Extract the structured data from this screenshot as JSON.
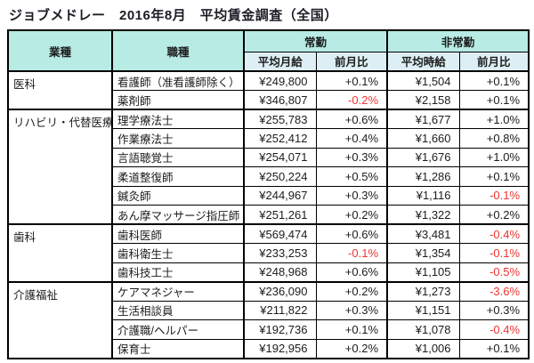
{
  "title": "ジョブメドレー　2016年8月　平均賃金調査（全国）",
  "colors": {
    "header_teal": "#b7ebe3",
    "subheader_blue": "#ddeff5",
    "negative_red": "#ee3333",
    "border_black": "#000000"
  },
  "table": {
    "headers": {
      "industry": "業種",
      "occupation": "職種",
      "fulltime": "常勤",
      "parttime": "非常勤",
      "avg_monthly": "平均月給",
      "mom_monthly": "前月比",
      "avg_hourly": "平均時給",
      "mom_hourly": "前月比"
    },
    "groups": [
      {
        "industry": "医科",
        "rows": [
          {
            "occupation": "看護師（准看護師除く）",
            "monthly": "¥249,800",
            "monthly_mom": "+0.1%",
            "monthly_neg": false,
            "hourly": "¥1,504",
            "hourly_mom": "+0.1%",
            "hourly_neg": false
          },
          {
            "occupation": "薬剤師",
            "monthly": "¥346,807",
            "monthly_mom": "-0.2%",
            "monthly_neg": true,
            "hourly": "¥2,158",
            "hourly_mom": "+0.1%",
            "hourly_neg": false
          }
        ]
      },
      {
        "industry": "リハビリ・代替医療",
        "rows": [
          {
            "occupation": "理学療法士",
            "monthly": "¥255,783",
            "monthly_mom": "+0.6%",
            "monthly_neg": false,
            "hourly": "¥1,677",
            "hourly_mom": "+1.0%",
            "hourly_neg": false
          },
          {
            "occupation": "作業療法士",
            "monthly": "¥252,412",
            "monthly_mom": "+0.4%",
            "monthly_neg": false,
            "hourly": "¥1,660",
            "hourly_mom": "+0.8%",
            "hourly_neg": false
          },
          {
            "occupation": "言語聴覚士",
            "monthly": "¥254,071",
            "monthly_mom": "+0.3%",
            "monthly_neg": false,
            "hourly": "¥1,676",
            "hourly_mom": "+1.0%",
            "hourly_neg": false
          },
          {
            "occupation": "柔道整復師",
            "monthly": "¥250,224",
            "monthly_mom": "+0.5%",
            "monthly_neg": false,
            "hourly": "¥1,286",
            "hourly_mom": "+0.1%",
            "hourly_neg": false
          },
          {
            "occupation": "鍼灸師",
            "monthly": "¥244,967",
            "monthly_mom": "+0.3%",
            "monthly_neg": false,
            "hourly": "¥1,116",
            "hourly_mom": "-0.1%",
            "hourly_neg": true
          },
          {
            "occupation": "あん摩マッサージ指圧師",
            "monthly": "¥251,261",
            "monthly_mom": "+0.2%",
            "monthly_neg": false,
            "hourly": "¥1,322",
            "hourly_mom": "+0.2%",
            "hourly_neg": false
          }
        ]
      },
      {
        "industry": "歯科",
        "rows": [
          {
            "occupation": "歯科医師",
            "monthly": "¥569,474",
            "monthly_mom": "+0.6%",
            "monthly_neg": false,
            "hourly": "¥3,481",
            "hourly_mom": "-0.4%",
            "hourly_neg": true
          },
          {
            "occupation": "歯科衛生士",
            "monthly": "¥233,253",
            "monthly_mom": "-0.1%",
            "monthly_neg": true,
            "hourly": "¥1,354",
            "hourly_mom": "-0.1%",
            "hourly_neg": true
          },
          {
            "occupation": "歯科技工士",
            "monthly": "¥248,968",
            "monthly_mom": "+0.6%",
            "monthly_neg": false,
            "hourly": "¥1,105",
            "hourly_mom": "-0.5%",
            "hourly_neg": true
          }
        ]
      },
      {
        "industry": "介護福祉",
        "rows": [
          {
            "occupation": "ケアマネジャー",
            "monthly": "¥236,090",
            "monthly_mom": "+0.2%",
            "monthly_neg": false,
            "hourly": "¥1,273",
            "hourly_mom": "-3.6%",
            "hourly_neg": true
          },
          {
            "occupation": "生活相談員",
            "monthly": "¥211,822",
            "monthly_mom": "+0.3%",
            "monthly_neg": false,
            "hourly": "¥1,151",
            "hourly_mom": "+0.3%",
            "hourly_neg": false
          },
          {
            "occupation": "介護職/ヘルパー",
            "monthly": "¥192,736",
            "monthly_mom": "+0.1%",
            "monthly_neg": false,
            "hourly": "¥1,078",
            "hourly_mom": "-0.4%",
            "hourly_neg": true
          },
          {
            "occupation": "保育士",
            "monthly": "¥192,956",
            "monthly_mom": "+0.2%",
            "monthly_neg": false,
            "hourly": "¥1,006",
            "hourly_mom": "+0.1%",
            "hourly_neg": false
          }
        ]
      }
    ]
  },
  "chart_data": {
    "type": "table",
    "title": "ジョブメドレー　2016年8月　平均賃金調査（全国）",
    "columns": [
      "業種",
      "職種",
      "常勤 平均月給",
      "常勤 前月比",
      "非常勤 平均時給",
      "非常勤 前月比"
    ],
    "rows": [
      [
        "医科",
        "看護師（准看護師除く）",
        "¥249,800",
        "+0.1%",
        "¥1,504",
        "+0.1%"
      ],
      [
        "医科",
        "薬剤師",
        "¥346,807",
        "-0.2%",
        "¥2,158",
        "+0.1%"
      ],
      [
        "リハビリ・代替医療",
        "理学療法士",
        "¥255,783",
        "+0.6%",
        "¥1,677",
        "+1.0%"
      ],
      [
        "リハビリ・代替医療",
        "作業療法士",
        "¥252,412",
        "+0.4%",
        "¥1,660",
        "+0.8%"
      ],
      [
        "リハビリ・代替医療",
        "言語聴覚士",
        "¥254,071",
        "+0.3%",
        "¥1,676",
        "+1.0%"
      ],
      [
        "リハビリ・代替医療",
        "柔道整復師",
        "¥250,224",
        "+0.5%",
        "¥1,286",
        "+0.1%"
      ],
      [
        "リハビリ・代替医療",
        "鍼灸師",
        "¥244,967",
        "+0.3%",
        "¥1,116",
        "-0.1%"
      ],
      [
        "リハビリ・代替医療",
        "あん摩マッサージ指圧師",
        "¥251,261",
        "+0.2%",
        "¥1,322",
        "+0.2%"
      ],
      [
        "歯科",
        "歯科医師",
        "¥569,474",
        "+0.6%",
        "¥3,481",
        "-0.4%"
      ],
      [
        "歯科",
        "歯科衛生士",
        "¥233,253",
        "-0.1%",
        "¥1,354",
        "-0.1%"
      ],
      [
        "歯科",
        "歯科技工士",
        "¥248,968",
        "+0.6%",
        "¥1,105",
        "-0.5%"
      ],
      [
        "介護福祉",
        "ケアマネジャー",
        "¥236,090",
        "+0.2%",
        "¥1,273",
        "-3.6%"
      ],
      [
        "介護福祉",
        "生活相談員",
        "¥211,822",
        "+0.3%",
        "¥1,151",
        "+0.3%"
      ],
      [
        "介護福祉",
        "介護職/ヘルパー",
        "¥192,736",
        "+0.1%",
        "¥1,078",
        "-0.4%"
      ],
      [
        "介護福祉",
        "保育士",
        "¥192,956",
        "+0.2%",
        "¥1,006",
        "+0.1%"
      ]
    ],
    "notes": "negative 前月比 values rendered in red"
  }
}
